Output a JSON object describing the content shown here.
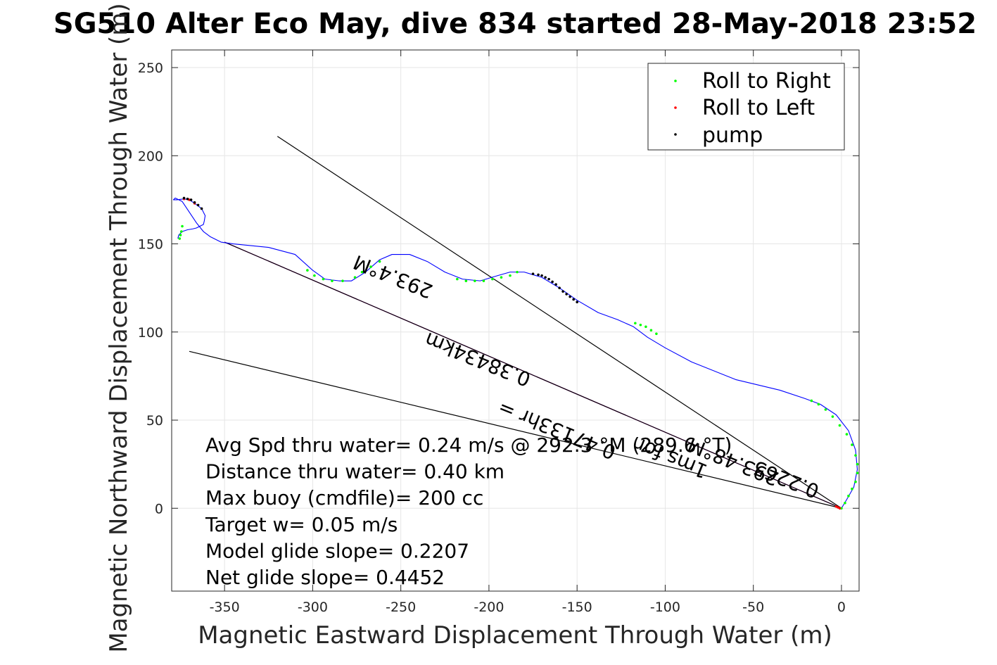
{
  "chart_data": {
    "type": "line",
    "title": "SG510 Alter Eco May, dive 834 started 28-May-2018 23:52",
    "xlabel": "Magnetic Eastward Displacement Through Water (m)",
    "ylabel": "Magnetic Northward Displacement Through Water (m)",
    "xlim": [
      -380,
      10
    ],
    "ylim": [
      -47,
      260
    ],
    "xticks": [
      -350,
      -300,
      -250,
      -200,
      -150,
      -100,
      -50,
      0
    ],
    "yticks": [
      0,
      50,
      100,
      150,
      200,
      250
    ],
    "grid": true,
    "legend": {
      "placement": "top-right",
      "entries": [
        {
          "label": "Roll to Right",
          "color": "#00ff00"
        },
        {
          "label": "Roll to Left",
          "color": "#ff0000"
        },
        {
          "label": "pump",
          "color": "#000000"
        }
      ]
    },
    "track": {
      "color": "#0000ff",
      "x": [
        0,
        3,
        7,
        9,
        8,
        4,
        -3,
        -12,
        -20,
        -35,
        -60,
        -85,
        -100,
        -110,
        -118,
        -127,
        -138,
        -150,
        -160,
        -170,
        -180,
        -188,
        -195,
        -205,
        -215,
        -225,
        -235,
        -245,
        -255,
        -262,
        -270,
        -278,
        -285,
        -293,
        -300,
        -310,
        -325,
        -345,
        -352,
        -358,
        -362,
        -366,
        -370,
        -374,
        -378,
        -379,
        -377,
        -373,
        -370,
        -367,
        -363,
        -361,
        -361.5,
        -362,
        -364,
        -366,
        -368,
        -371,
        -374,
        -376,
        -376.5
      ],
      "y": [
        0,
        5,
        12,
        22,
        33,
        44,
        53,
        59,
        62,
        67,
        73,
        83,
        91,
        97,
        103,
        107,
        111,
        118,
        125,
        131,
        134,
        134,
        132,
        129,
        130,
        134,
        140,
        144,
        144,
        141,
        134,
        129,
        129,
        130,
        135,
        144,
        148,
        150,
        151,
        154,
        157,
        162,
        168,
        174,
        176,
        175,
        175,
        175.5,
        175,
        173,
        170,
        166,
        163,
        161,
        160,
        159,
        158.5,
        158,
        157,
        155,
        153
      ]
    },
    "markers": {
      "roll_right": {
        "color": "#00ff00",
        "x": [
          0,
          2,
          4,
          6,
          8,
          9,
          9,
          8,
          6,
          3,
          -1,
          -5,
          -9,
          -13,
          -17,
          -105,
          -108,
          -111,
          -114,
          -117,
          -262,
          -267,
          -272,
          -276,
          -283,
          -289,
          -294,
          -299,
          -303,
          -218,
          -213,
          -208,
          -203,
          -198,
          -193,
          -188,
          -184,
          -375.5,
          -375,
          -374.5,
          -374
        ],
        "y": [
          0,
          3,
          7,
          11,
          15,
          20,
          25,
          30,
          36,
          42,
          47,
          52,
          56,
          59,
          61,
          99,
          101,
          103,
          104,
          105,
          140,
          137,
          134,
          131,
          129,
          129,
          130,
          132,
          135,
          130,
          129,
          129,
          129,
          130,
          131,
          132,
          134,
          153,
          155,
          157,
          160
        ]
      },
      "roll_left": {
        "color": "#ff0000",
        "x": [
          -1,
          -2,
          -3,
          -373,
          -370,
          -367
        ],
        "y": [
          0,
          0.5,
          1,
          175.5,
          175,
          173
        ]
      },
      "pump": {
        "color": "#000000",
        "x": [
          -175,
          -172,
          -170,
          -168,
          -166,
          -164,
          -162,
          -160,
          -158,
          -156,
          -154,
          -152,
          -150,
          -373,
          -371,
          -369,
          -367,
          -365,
          -363
        ],
        "y": [
          133,
          132.5,
          132,
          131,
          130,
          128.5,
          127,
          125,
          123,
          121.5,
          120,
          118.5,
          117,
          176,
          175.5,
          175,
          173.5,
          172,
          170
        ]
      }
    },
    "lines": [
      {
        "name": "heading-line",
        "color": "#ff00ff",
        "x": [
          0,
          -350
        ],
        "y": [
          0,
          151
        ]
      },
      {
        "name": "track-line",
        "color": "#000000",
        "x": [
          0,
          -350
        ],
        "y": [
          0,
          151
        ]
      },
      {
        "name": "bound-line-upper",
        "color": "#000000",
        "x": [
          0,
          -320
        ],
        "y": [
          0,
          211
        ]
      },
      {
        "name": "bound-line-lower",
        "color": "#000000",
        "x": [
          0,
          -370
        ],
        "y": [
          0,
          89
        ]
      }
    ],
    "line_labels": [
      {
        "text": "293.4°M",
        "x": -253,
        "y": 135,
        "angle_deg": 22
      },
      {
        "text": "0.38434km",
        "x": -205,
        "y": 88,
        "angle_deg": 22
      },
      {
        "text": "0.2265",
        "x": -30,
        "y": 20,
        "angle_deg": 22
      }
    ],
    "hidden_labels": [
      "0.47133hr =",
      "1ms for",
      "293.48°M"
    ],
    "annotations": [
      "Avg Spd thru water=  0.24 m/s @ 292.3 °M (289.6 °T)",
      "Distance thru water=  0.40 km",
      "Max buoy (cmdfile)= 200 cc",
      "Target w= 0.05 m/s",
      "Model glide slope= 0.2207",
      "Net glide slope= 0.4452"
    ]
  }
}
